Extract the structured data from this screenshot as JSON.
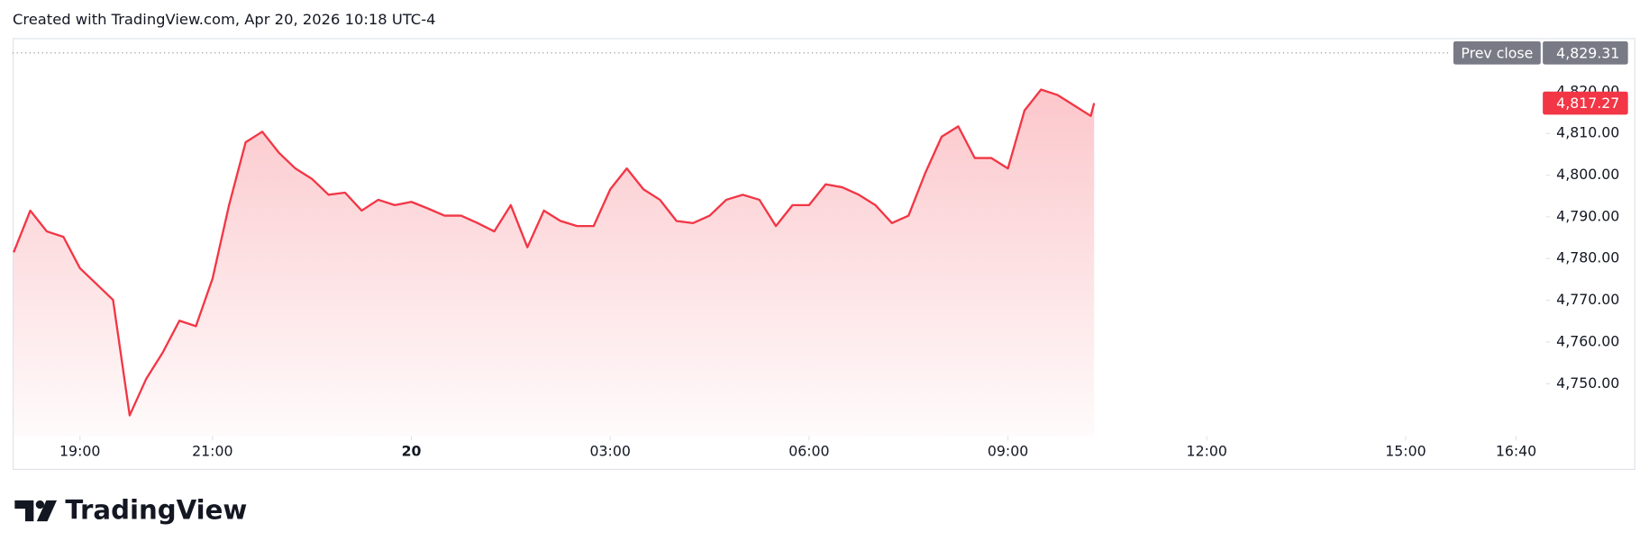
{
  "header": {
    "text": "Created with TradingView.com, Apr 20, 2026 10:18 UTC-4"
  },
  "brand": {
    "name": "TradingView"
  },
  "chart_data": {
    "type": "area-line",
    "color": "#f23645",
    "x": [
      "18:00",
      "18:15",
      "18:30",
      "18:45",
      "19:00",
      "19:15",
      "19:30",
      "19:45",
      "20:00",
      "20:15",
      "20:30",
      "20:45",
      "21:00",
      "21:15",
      "21:30",
      "21:45",
      "22:00",
      "22:15",
      "22:30",
      "22:45",
      "23:00",
      "23:15",
      "23:30",
      "23:45",
      "00:00",
      "00:15",
      "00:30",
      "00:45",
      "01:00",
      "01:15",
      "01:30",
      "01:45",
      "02:00",
      "02:15",
      "02:30",
      "02:45",
      "03:00",
      "03:15",
      "03:30",
      "03:45",
      "04:00",
      "04:15",
      "04:30",
      "04:45",
      "05:00",
      "05:15",
      "05:30",
      "05:45",
      "06:00",
      "06:15",
      "06:30",
      "06:45",
      "07:00",
      "07:15",
      "07:30",
      "07:45",
      "08:00",
      "08:15",
      "08:30",
      "08:45",
      "09:00",
      "09:15",
      "09:30",
      "09:45",
      "10:00",
      "10:15",
      "10:18"
    ],
    "values": [
      4781.5,
      4791.5,
      4786.5,
      4785.2,
      4777.7,
      4773.9,
      4770.1,
      4742.4,
      4751.2,
      4757.5,
      4765.1,
      4763.8,
      4775.2,
      4792.8,
      4807.9,
      4810.4,
      4805.4,
      4801.6,
      4799.1,
      4795.3,
      4795.8,
      4791.5,
      4794.1,
      4792.8,
      4793.6,
      4792.0,
      4790.3,
      4790.3,
      4788.5,
      4786.5,
      4792.8,
      4782.7,
      4791.5,
      4789.0,
      4787.8,
      4787.8,
      4796.6,
      4801.6,
      4796.6,
      4794.1,
      4789.0,
      4788.5,
      4790.3,
      4794.1,
      4795.3,
      4794.1,
      4787.8,
      4792.8,
      4792.8,
      4797.8,
      4797.1,
      4795.3,
      4792.8,
      4788.5,
      4790.3,
      4800.4,
      4809.2,
      4811.7,
      4804.1,
      4804.1,
      4801.6,
      4815.5,
      4820.5,
      4819.2,
      4816.7,
      4814.2,
      4817.27
    ],
    "xlim": [
      "18:00",
      "17:07"
    ],
    "xticks": [
      "19:00",
      "21:00",
      {
        "value": "00:00",
        "label": "20"
      },
      "03:00",
      "06:00",
      "09:00",
      "12:00",
      "15:00",
      "16:40"
    ],
    "ylim": [
      4737.4,
      4832.6
    ],
    "yticks": [
      {
        "value": 4750,
        "label": "4,750.00"
      },
      {
        "value": 4760,
        "label": "4,760.00"
      },
      {
        "value": 4770,
        "label": "4,770.00"
      },
      {
        "value": 4780,
        "label": "4,780.00"
      },
      {
        "value": 4790,
        "label": "4,790.00"
      },
      {
        "value": 4800,
        "label": "4,800.00"
      },
      {
        "value": 4810,
        "label": "4,810.00"
      },
      {
        "value": 4820,
        "label": "4,820.00"
      }
    ],
    "prev_close": {
      "label": "Prev close",
      "value": 4829.31,
      "value_label": "4,829.31"
    },
    "last_price": {
      "value": 4817.27,
      "value_label": "4,817.27"
    }
  }
}
